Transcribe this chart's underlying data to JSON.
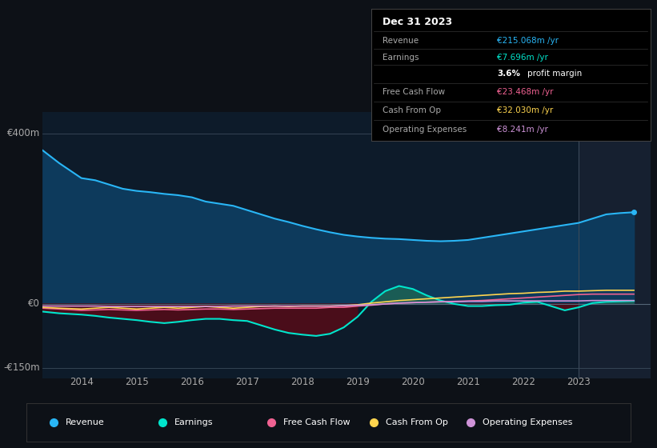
{
  "background_color": "#0d1117",
  "plot_bg_color": "#0d1b2a",
  "ylim": [
    -175,
    450
  ],
  "xlim": [
    2013.3,
    2024.3
  ],
  "ytick_values": [
    -150,
    0,
    400
  ],
  "ytick_labels": [
    "-€150m",
    "€0",
    "€400m"
  ],
  "xtick_positions": [
    2014,
    2015,
    2016,
    2017,
    2018,
    2019,
    2020,
    2021,
    2022,
    2023
  ],
  "xtick_labels": [
    "2014",
    "2015",
    "2016",
    "2017",
    "2018",
    "2019",
    "2020",
    "2021",
    "2022",
    "2023"
  ],
  "revenue_color": "#29b6f6",
  "revenue_fill_color": "#0d3a5c",
  "earnings_color": "#00e5cc",
  "earnings_fill_color_neg": "#4a0d1a",
  "earnings_fill_color_pos": "#1a5c55",
  "fcf_color": "#f06292",
  "cashfromop_color": "#ffd54f",
  "opex_color": "#ce93d8",
  "panel_right_color": "#162030",
  "separator_x": 2023.0,
  "x_years": [
    2013.3,
    2013.6,
    2014.0,
    2014.25,
    2014.5,
    2014.75,
    2015.0,
    2015.25,
    2015.5,
    2015.75,
    2016.0,
    2016.25,
    2016.5,
    2016.75,
    2017.0,
    2017.25,
    2017.5,
    2017.75,
    2018.0,
    2018.25,
    2018.5,
    2018.75,
    2019.0,
    2019.25,
    2019.5,
    2019.75,
    2020.0,
    2020.25,
    2020.5,
    2020.75,
    2021.0,
    2021.25,
    2021.5,
    2021.75,
    2022.0,
    2022.25,
    2022.5,
    2022.75,
    2023.0,
    2023.25,
    2023.5,
    2023.75,
    2024.0
  ],
  "revenue": [
    360,
    330,
    295,
    290,
    280,
    270,
    265,
    262,
    258,
    255,
    250,
    240,
    235,
    230,
    220,
    210,
    200,
    192,
    183,
    175,
    168,
    162,
    158,
    155,
    153,
    152,
    150,
    148,
    147,
    148,
    150,
    155,
    160,
    165,
    170,
    175,
    180,
    185,
    190,
    200,
    210,
    213,
    215
  ],
  "earnings": [
    -18,
    -22,
    -25,
    -28,
    -32,
    -35,
    -38,
    -42,
    -45,
    -42,
    -38,
    -35,
    -35,
    -38,
    -40,
    -50,
    -60,
    -68,
    -72,
    -75,
    -70,
    -55,
    -30,
    5,
    30,
    42,
    35,
    20,
    8,
    0,
    -5,
    -5,
    -3,
    -2,
    3,
    5,
    -5,
    -15,
    -8,
    2,
    5,
    6,
    7
  ],
  "fcf": [
    -10,
    -12,
    -15,
    -14,
    -13,
    -14,
    -15,
    -14,
    -13,
    -14,
    -13,
    -12,
    -12,
    -13,
    -12,
    -11,
    -10,
    -10,
    -10,
    -10,
    -8,
    -8,
    -5,
    -3,
    0,
    2,
    3,
    4,
    5,
    6,
    7,
    8,
    10,
    12,
    14,
    16,
    18,
    20,
    22,
    23,
    23,
    23,
    23
  ],
  "cashfromop": [
    -8,
    -10,
    -12,
    -10,
    -8,
    -10,
    -12,
    -10,
    -8,
    -10,
    -8,
    -6,
    -8,
    -10,
    -8,
    -6,
    -5,
    -6,
    -5,
    -5,
    -5,
    -4,
    -2,
    2,
    5,
    8,
    10,
    12,
    14,
    16,
    18,
    20,
    22,
    24,
    25,
    27,
    28,
    30,
    30,
    31,
    32,
    32,
    32
  ],
  "opex": [
    -5,
    -5,
    -5,
    -5,
    -6,
    -6,
    -6,
    -6,
    -6,
    -6,
    -6,
    -6,
    -6,
    -5,
    -5,
    -5,
    -5,
    -5,
    -5,
    -5,
    -5,
    -4,
    -3,
    -2,
    0,
    2,
    3,
    4,
    5,
    5,
    6,
    6,
    7,
    7,
    7,
    7,
    7,
    7,
    7,
    8,
    8,
    8,
    8
  ],
  "info_title": "Dec 31 2023",
  "info_rows": [
    {
      "label": "Revenue",
      "value": "€215.068m /yr",
      "value_color": "#29b6f6"
    },
    {
      "label": "Earnings",
      "value": "€7.696m /yr",
      "value_color": "#00e5cc"
    },
    {
      "label": "",
      "value": "3.6% profit margin",
      "value_color": "#ffffff"
    },
    {
      "label": "Free Cash Flow",
      "value": "€23.468m /yr",
      "value_color": "#f06292"
    },
    {
      "label": "Cash From Op",
      "value": "€32.030m /yr",
      "value_color": "#ffd54f"
    },
    {
      "label": "Operating Expenses",
      "value": "€8.241m /yr",
      "value_color": "#ce93d8"
    }
  ],
  "legend_items": [
    {
      "label": "Revenue",
      "color": "#29b6f6"
    },
    {
      "label": "Earnings",
      "color": "#00e5cc"
    },
    {
      "label": "Free Cash Flow",
      "color": "#f06292"
    },
    {
      "label": "Cash From Op",
      "color": "#ffd54f"
    },
    {
      "label": "Operating Expenses",
      "color": "#ce93d8"
    }
  ]
}
